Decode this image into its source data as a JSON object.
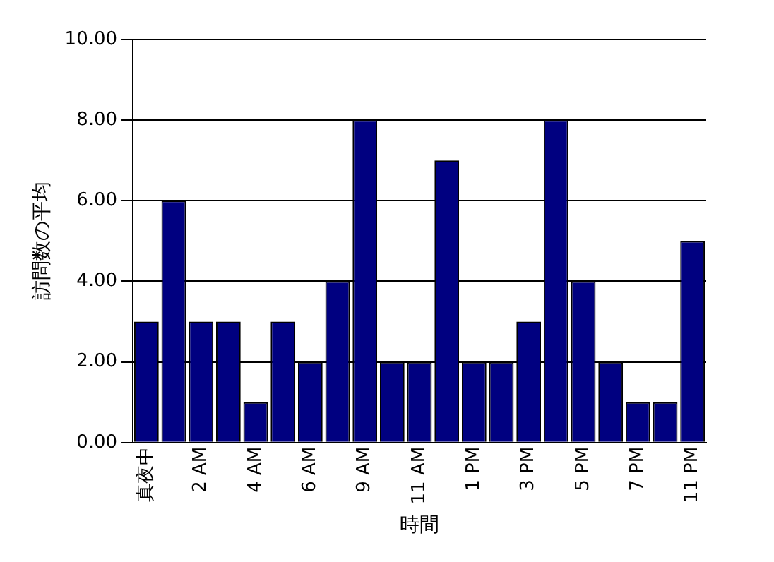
{
  "chart_data": {
    "type": "bar",
    "xlabel": "時間",
    "ylabel": "訪問数の平均",
    "categories": [
      "真夜中",
      null,
      "2 AM",
      null,
      "4 AM",
      null,
      "6 AM",
      null,
      "9 AM",
      null,
      "11 AM",
      null,
      "1 PM",
      null,
      "3 PM",
      null,
      "5 PM",
      null,
      "7 PM",
      null,
      "11 PM"
    ],
    "values": [
      3,
      6,
      3,
      3,
      1,
      3,
      2,
      4,
      8,
      2,
      2,
      7,
      2,
      2,
      3,
      8,
      4,
      2,
      1,
      1,
      5
    ],
    "color": "#000080",
    "ylim": [
      0,
      10
    ],
    "yticks": [
      {
        "value": 0,
        "label": "0.00"
      },
      {
        "value": 2,
        "label": "2.00"
      },
      {
        "value": 4,
        "label": "4.00"
      },
      {
        "value": 6,
        "label": "6.00"
      },
      {
        "value": 8,
        "label": "8.00"
      },
      {
        "value": 10,
        "label": "10.00"
      }
    ],
    "grid": "y",
    "legend": false
  }
}
